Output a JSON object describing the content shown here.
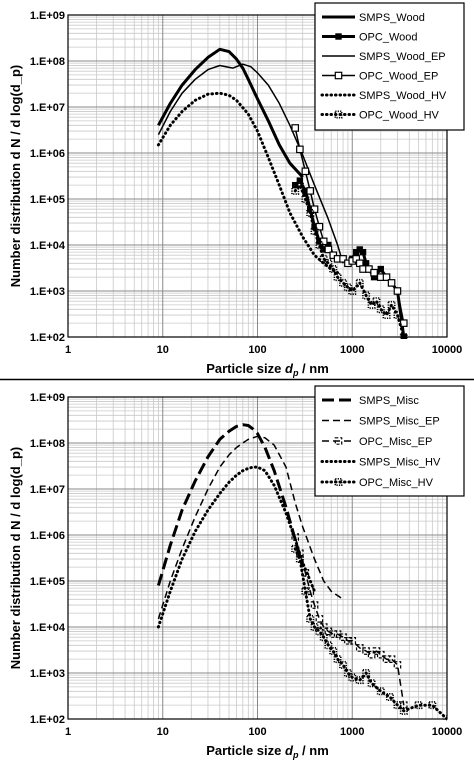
{
  "chart_data": [
    {
      "type": "line",
      "xscale": "log",
      "yscale": "log",
      "xlim": [
        1,
        10000
      ],
      "ylim": [
        100,
        1000000000
      ],
      "xlabel": "Particle size d_p / nm",
      "ylabel": "Number distribution d N / d log(d_p)",
      "x_ticks": [
        "1",
        "10",
        "100",
        "1000",
        "10000"
      ],
      "y_ticks": [
        "1.E+02",
        "1.E+03",
        "1.E+04",
        "1.E+05",
        "1.E+06",
        "1.E+07",
        "1.E+08",
        "1.E+09"
      ],
      "grid": true,
      "legend_position": "top-right",
      "series": [
        {
          "name": "SMPS_Wood",
          "style": "solid-thick",
          "marker": "none",
          "x": [
            9,
            12,
            16,
            22,
            30,
            40,
            50,
            60,
            70,
            80,
            100,
            130,
            170,
            220,
            300
          ],
          "y": [
            4000000.0,
            12000000.0,
            30000000.0,
            65000000.0,
            120000000.0,
            180000000.0,
            160000000.0,
            110000000.0,
            70000000.0,
            40000000.0,
            15000000.0,
            5000000.0,
            1500000.0,
            600000.0,
            300000.0
          ]
        },
        {
          "name": "OPC_Wood",
          "style": "solid-thick",
          "marker": "filled-square",
          "x": [
            250,
            280,
            320,
            360,
            400,
            450,
            500,
            560,
            630,
            700,
            800,
            900,
            1000,
            1100,
            1200,
            1300,
            1400,
            1500,
            1700,
            2000,
            2300,
            2600,
            3000,
            3500
          ],
          "y": [
            200000.0,
            250000.0,
            150000.0,
            60000.0,
            25000.0,
            12000.0,
            8000.0,
            10000.0,
            6000.0,
            5000.0,
            5000.0,
            4000.0,
            5000.0,
            7000.0,
            8000.0,
            7000.0,
            4000.0,
            3000.0,
            2000.0,
            3000.0,
            2000.0,
            1500.0,
            1000.0,
            100.0
          ]
        },
        {
          "name": "SMPS_Wood_EP",
          "style": "solid-thin",
          "marker": "none",
          "x": [
            9,
            12,
            16,
            22,
            30,
            40,
            55,
            70,
            85,
            100,
            130,
            170,
            220,
            300,
            400,
            550,
            700,
            800
          ],
          "y": [
            2500000.0,
            8000000.0,
            20000000.0,
            40000000.0,
            65000000.0,
            80000000.0,
            70000000.0,
            85000000.0,
            75000000.0,
            55000000.0,
            30000000.0,
            12000000.0,
            4000000.0,
            900000.0,
            200000.0,
            40000.0,
            10000.0,
            4000.0
          ]
        },
        {
          "name": "OPC_Wood_EP",
          "style": "solid-thin",
          "marker": "open-square",
          "x": [
            250,
            280,
            320,
            360,
            400,
            450,
            500,
            560,
            630,
            700,
            800,
            900,
            1000,
            1100,
            1200,
            1300,
            1500,
            1700,
            2000,
            2300,
            2600,
            3000,
            3500
          ],
          "y": [
            3500000.0,
            1200000.0,
            400000.0,
            150000.0,
            60000.0,
            25000.0,
            12000.0,
            8000.0,
            6000.0,
            5000.0,
            5000.0,
            4000.0,
            4500.0,
            5000.0,
            4000.0,
            3000.0,
            3000.0,
            2500.0,
            2000.0,
            2000.0,
            1500.0,
            1000.0,
            200.0
          ]
        },
        {
          "name": "SMPS_Wood_HV",
          "style": "dotted",
          "marker": "none",
          "x": [
            9,
            12,
            16,
            22,
            30,
            40,
            50,
            60,
            80,
            100,
            130,
            170,
            220,
            300,
            400,
            500,
            600,
            700
          ],
          "y": [
            1500000.0,
            4000000.0,
            8000000.0,
            14000000.0,
            19000000.0,
            20000000.0,
            18000000.0,
            14000000.0,
            7000000.0,
            3000000.0,
            800000.0,
            200000.0,
            50000.0,
            15000.0,
            6000.0,
            4000.0,
            3000.0,
            2500.0
          ]
        },
        {
          "name": "OPC_Wood_HV",
          "style": "dotted",
          "marker": "dotted-square",
          "x": [
            250,
            280,
            320,
            360,
            400,
            450,
            500,
            560,
            630,
            700,
            800,
            900,
            1000,
            1200,
            1400,
            1600,
            1800,
            2000,
            2300,
            2600,
            3000,
            3500
          ],
          "y": [
            150000.0,
            200000.0,
            100000.0,
            50000.0,
            20000.0,
            10000.0,
            5000.0,
            4000.0,
            3000.0,
            2000.0,
            1500.0,
            1200.0,
            1000.0,
            1500.0,
            800.0,
            500.0,
            600.0,
            400.0,
            300.0,
            500.0,
            300.0,
            100.0
          ]
        }
      ]
    },
    {
      "type": "line",
      "xscale": "log",
      "yscale": "log",
      "xlim": [
        1,
        10000
      ],
      "ylim": [
        100,
        1000000000
      ],
      "xlabel": "Particle size d_p / nm",
      "ylabel": "Number distribution d N / d log(d_p)",
      "x_ticks": [
        "1",
        "10",
        "100",
        "1000",
        "10000"
      ],
      "y_ticks": [
        "1.E+02",
        "1.E+03",
        "1.E+04",
        "1.E+05",
        "1.E+06",
        "1.E+07",
        "1.E+08",
        "1.E+09"
      ],
      "grid": true,
      "legend_position": "top-right",
      "series": [
        {
          "name": "SMPS_Misc",
          "style": "long-dash-thick",
          "marker": "none",
          "x": [
            9,
            12,
            16,
            22,
            30,
            40,
            50,
            60,
            70,
            80,
            90,
            100,
            120,
            150,
            200,
            250,
            300
          ],
          "y": [
            80000.0,
            600000.0,
            3500000.0,
            15000000.0,
            50000000.0,
            120000000.0,
            180000000.0,
            230000000.0,
            250000000.0,
            240000000.0,
            200000000.0,
            160000000.0,
            80000000.0,
            25000000.0,
            4000000.0,
            800000.0,
            200000.0
          ]
        },
        {
          "name": "SMPS_Misc_EP",
          "style": "dashed",
          "marker": "none",
          "x": [
            9,
            12,
            16,
            22,
            30,
            40,
            50,
            60,
            70,
            80,
            100,
            120,
            150,
            200,
            250,
            300,
            400,
            500,
            600,
            800
          ],
          "y": [
            15000.0,
            100000.0,
            500000.0,
            2500000.0,
            10000000.0,
            30000000.0,
            55000000.0,
            80000000.0,
            100000000.0,
            120000000.0,
            140000000.0,
            130000000.0,
            90000000.0,
            30000000.0,
            5000000.0,
            1500000.0,
            300000.0,
            100000.0,
            60000.0,
            40000.0
          ]
        },
        {
          "name": "OPC_Misc_EP",
          "style": "dashed",
          "marker": "dash-square",
          "x": [
            250,
            280,
            320,
            360,
            400,
            450,
            500,
            560,
            630,
            700,
            800,
            900,
            1000,
            1200,
            1400,
            1600,
            1800,
            2000,
            2300,
            2600,
            3000,
            3500
          ],
          "y": [
            900000.0,
            400000.0,
            150000.0,
            60000.0,
            30000.0,
            15000.0,
            10000.0,
            8000.0,
            7000.0,
            7000.0,
            6000.0,
            5000.0,
            5000.0,
            3500.0,
            3000.0,
            2500.0,
            3000.0,
            2500.0,
            2000.0,
            2000.0,
            1500.0,
            200.0
          ]
        },
        {
          "name": "SMPS_Misc_HV",
          "style": "dotted",
          "marker": "none",
          "x": [
            9,
            12,
            16,
            22,
            30,
            40,
            50,
            60,
            70,
            80,
            90,
            100,
            120,
            150,
            200,
            250,
            300,
            400
          ],
          "y": [
            10000.0,
            60000.0,
            300000.0,
            1200000.0,
            3500000.0,
            8000000.0,
            14000000.0,
            20000000.0,
            25000000.0,
            28000000.0,
            30000000.0,
            30000000.0,
            25000000.0,
            12000000.0,
            3000000.0,
            800000.0,
            250000.0,
            60000.0
          ]
        },
        {
          "name": "OPC_Misc_HV",
          "style": "dotted",
          "marker": "dotted-square",
          "x": [
            250,
            280,
            320,
            360,
            400,
            450,
            500,
            560,
            630,
            700,
            800,
            900,
            1000,
            1200,
            1400,
            1600,
            2000,
            2500,
            3000,
            3500,
            5000,
            7000,
            10000
          ],
          "y": [
            500000.0,
            300000.0,
            60000.0,
            15000.0,
            10000.0,
            8000.0,
            6000.0,
            4000.0,
            3000.0,
            2000.0,
            1500.0,
            1000.0,
            800.0,
            700.0,
            1000.0,
            600.0,
            400.0,
            300.0,
            200.0,
            150.0,
            200.0,
            200.0,
            100.0
          ]
        }
      ]
    }
  ]
}
